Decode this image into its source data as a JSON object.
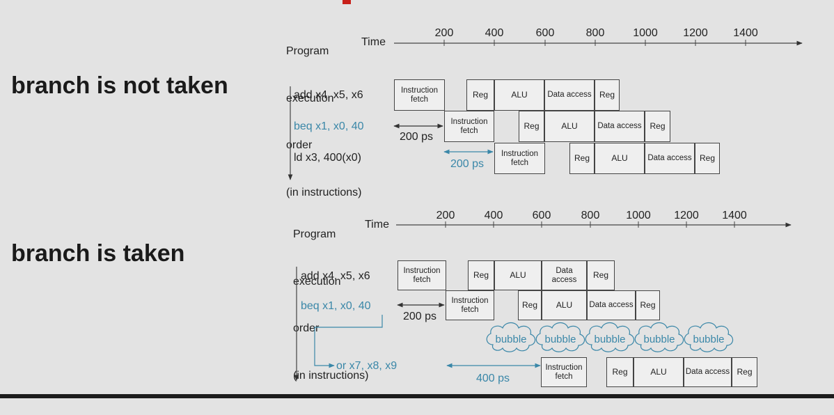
{
  "labels": {
    "not_taken": "branch is not taken",
    "taken": "branch is taken"
  },
  "header_lines": [
    "Program",
    "execution",
    "order",
    "(in instructions)"
  ],
  "time_label": "Time",
  "ticks": [
    "200",
    "400",
    "600",
    "800",
    "1000",
    "1200",
    "1400"
  ],
  "stages": {
    "if": "Instruction fetch",
    "reg": "Reg",
    "alu": "ALU",
    "mem": "Data access"
  },
  "top": {
    "instr": [
      "add x4, x5, x6",
      "beq x1, x0, 40",
      "ld x3, 400(x0)"
    ],
    "ps1": "200 ps",
    "ps2": "200 ps"
  },
  "bottom": {
    "instr": [
      "add x4, x5, x6",
      "beq x1, x0, 40",
      "or x7, x8, x9"
    ],
    "ps1": "200 ps",
    "ps2": "400 ps",
    "bubble": "bubble"
  },
  "colors": {
    "blue": "#3a87a8",
    "red": "#c8201a"
  }
}
